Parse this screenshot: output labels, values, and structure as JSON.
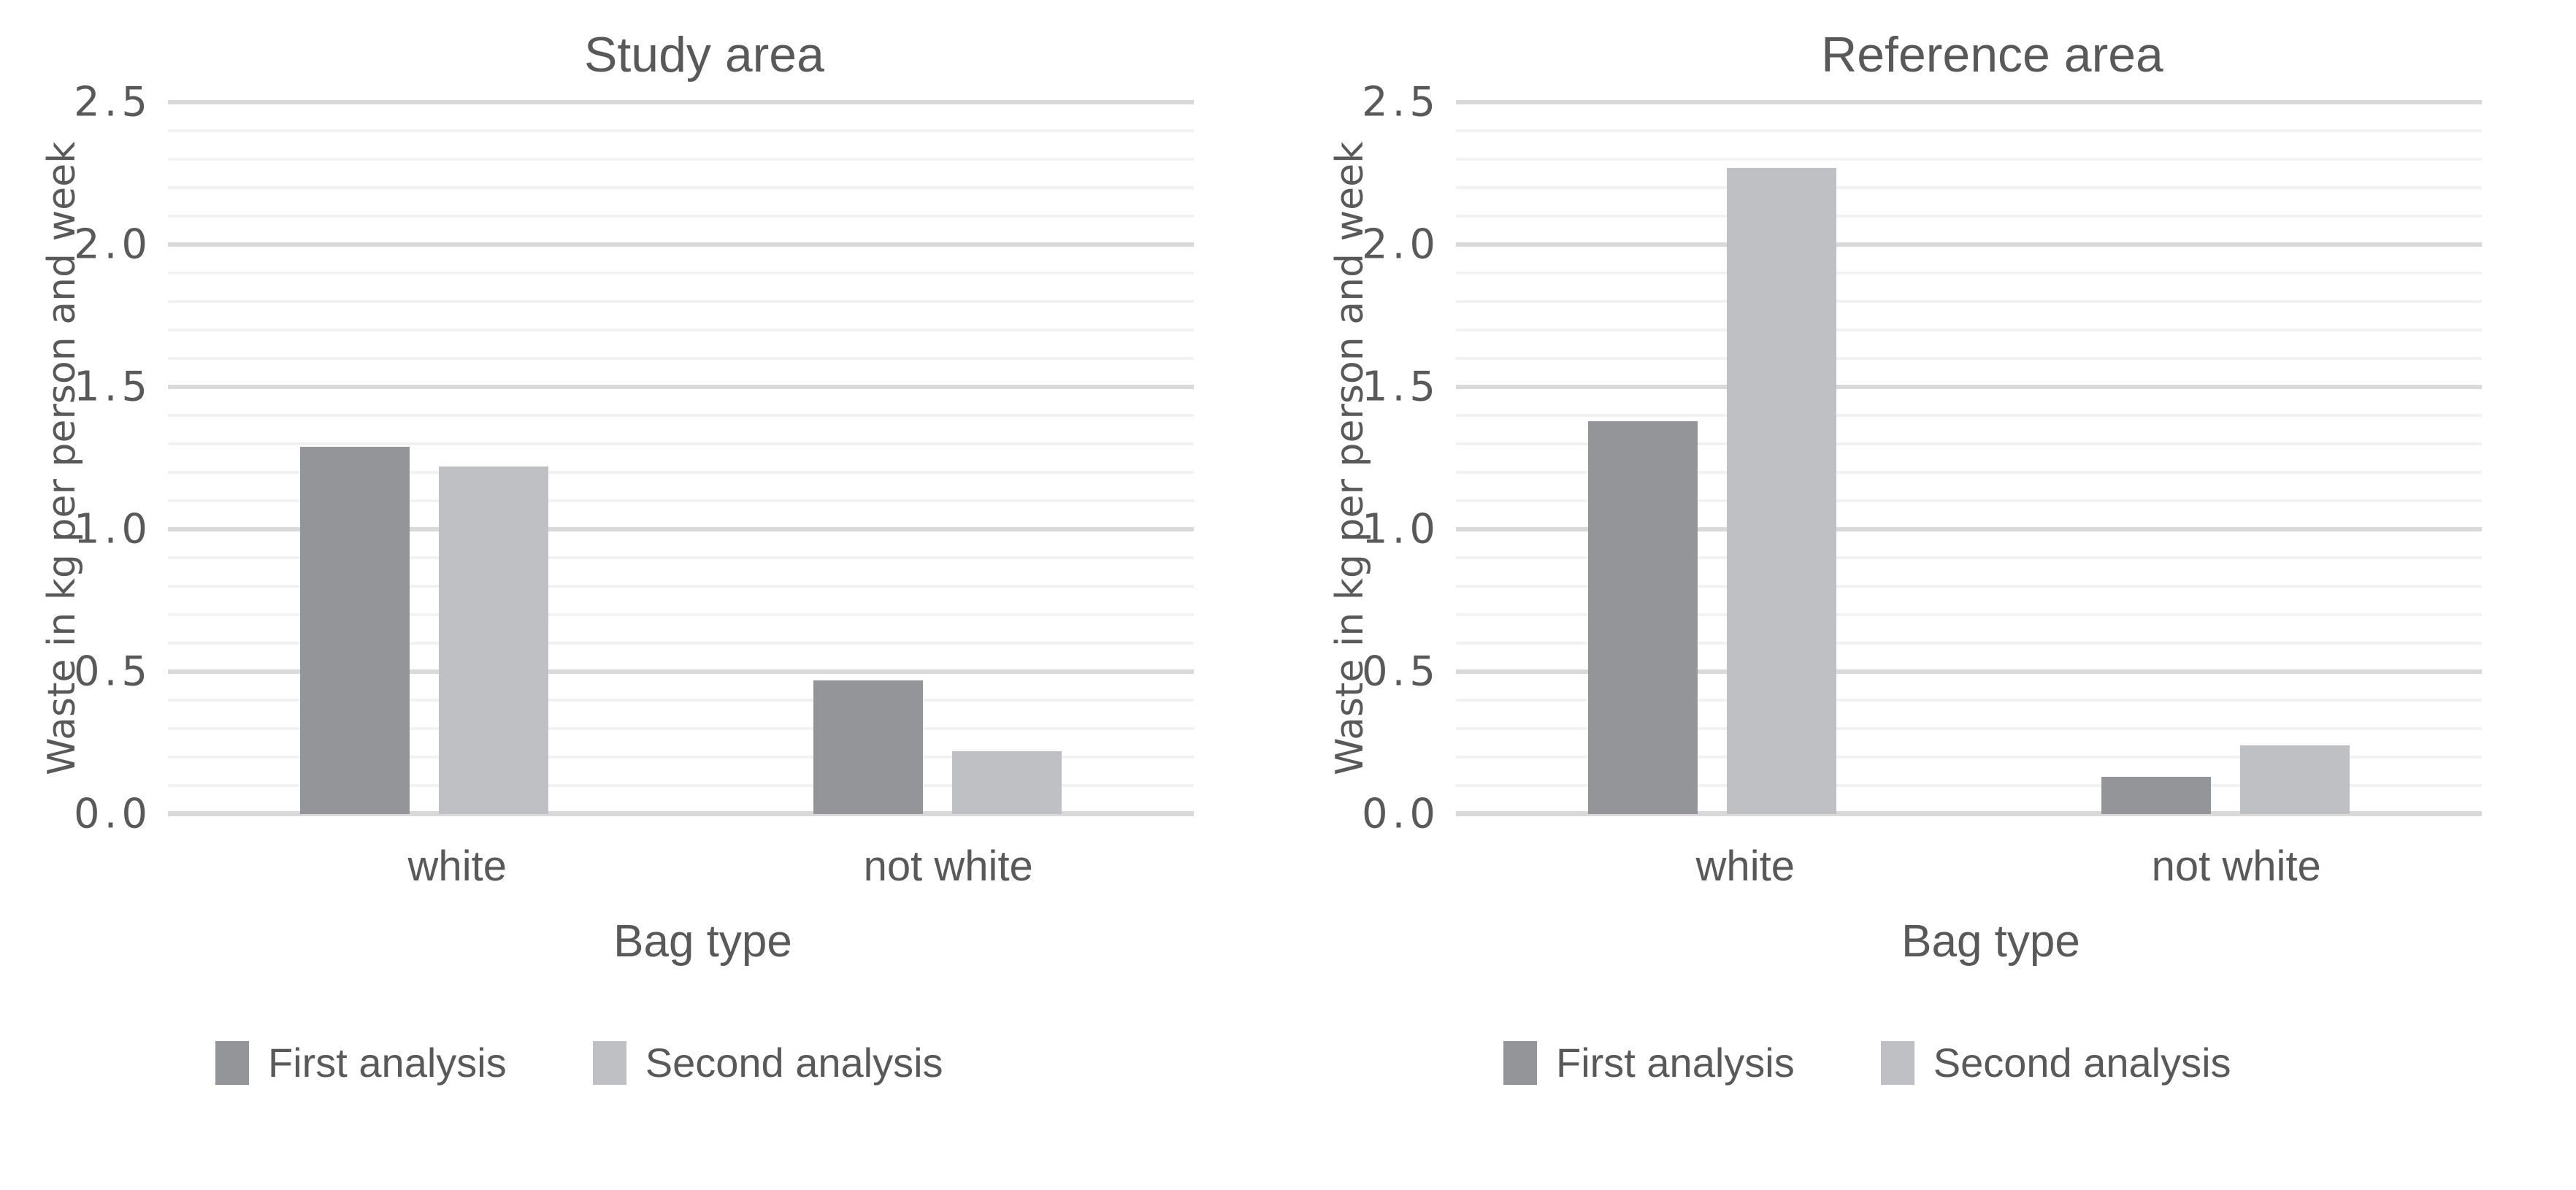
{
  "figure": {
    "background": "#ffffff",
    "text_color": "#595959"
  },
  "grid": {
    "minor_color": "#f2f2f2",
    "major_color": "#d9d9d9",
    "baseline_color": "#d9d9d9"
  },
  "chart_data": [
    {
      "type": "bar",
      "title": "Study area",
      "xlabel": "Bag type",
      "ylabel": "Waste in kg per person and week",
      "categories": [
        "white",
        "not white"
      ],
      "series": [
        {
          "name": "First analysis",
          "color": "#949598",
          "values": [
            1.29,
            0.47
          ]
        },
        {
          "name": "Second analysis",
          "color": "#bfc0c4",
          "values": [
            1.22,
            0.22
          ]
        }
      ],
      "ylim": [
        0,
        2.5
      ],
      "yticks": [
        0.0,
        0.5,
        1.0,
        1.5,
        2.0,
        2.5
      ],
      "ytick_labels": [
        "0.0",
        "0.5",
        "1.0",
        "1.5",
        "2.0",
        "2.5"
      ],
      "minor_step": 0.1,
      "grid": "horizontal-only",
      "legend_position": "bottom-left"
    },
    {
      "type": "bar",
      "title": "Reference area",
      "xlabel": "Bag type",
      "ylabel": "Waste in kg per person and week",
      "categories": [
        "white",
        "not white"
      ],
      "series": [
        {
          "name": "First analysis",
          "color": "#949598",
          "values": [
            1.38,
            0.13
          ]
        },
        {
          "name": "Second analysis",
          "color": "#bfc0c4",
          "values": [
            2.27,
            0.24
          ]
        }
      ],
      "ylim": [
        0,
        2.5
      ],
      "yticks": [
        0.0,
        0.5,
        1.0,
        1.5,
        2.0,
        2.5
      ],
      "ytick_labels": [
        "0.0",
        "0.5",
        "1.0",
        "1.5",
        "2.0",
        "2.5"
      ],
      "minor_step": 0.1,
      "grid": "horizontal-only",
      "legend_position": "bottom-left"
    }
  ]
}
